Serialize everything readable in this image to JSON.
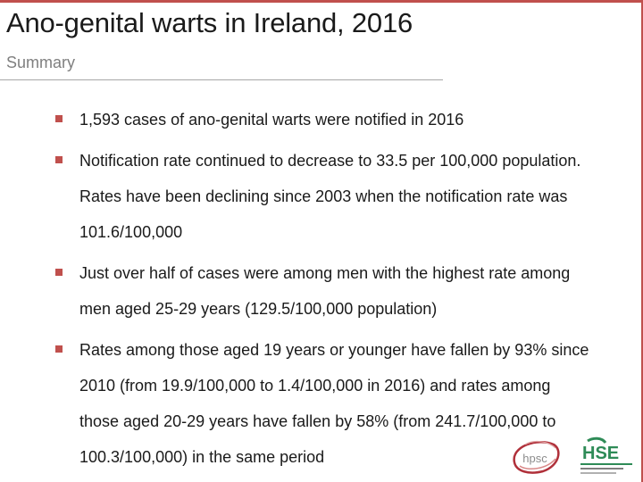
{
  "slide": {
    "title": "Ano-genital warts in Ireland, 2016",
    "subtitle": "Summary"
  },
  "bullets": [
    {
      "text": "1,593 cases of ano-genital warts were notified in 2016"
    },
    {
      "text": "Notification rate continued to decrease to 33.5 per 100,000 population.  Rates have been declining since 2003 when the notification rate was 101.6/100,000"
    },
    {
      "text": "Just over half of cases were among men with the highest rate among men aged 25-29 years (129.5/100,000 population)"
    },
    {
      "text": "Rates among those aged 19 years or younger have fallen by 93% since 2010 (from 19.9/100,000 to 1.4/100,000 in 2016) and rates among those aged 20-29 years have fallen by 58% (from 241.7/100,000 to 100.3/100,000) in the same period"
    }
  ],
  "logos": {
    "hpsc": {
      "text": "hpsc",
      "icon": "hpsc-logo"
    },
    "hse": {
      "text": "HSE",
      "icon": "hse-logo"
    }
  },
  "colors": {
    "accent": "#c0504d",
    "text": "#1a1a1a",
    "subtitle": "#7f7f7f",
    "hse_green": "#2e8b57"
  }
}
